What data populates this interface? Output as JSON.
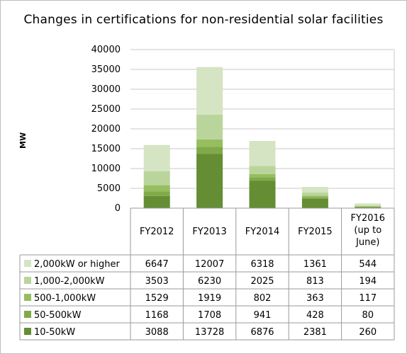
{
  "chart_data": {
    "type": "bar",
    "stacked": true,
    "title": "Changes in certifications for non-residential solar facilities",
    "ylabel": "MW",
    "xlabel": "",
    "ylim": [
      0,
      40000
    ],
    "yticks": [
      "0",
      "5000",
      "10000",
      "15000",
      "20000",
      "25000",
      "30000",
      "35000",
      "40000"
    ],
    "grid": true,
    "legend": "table-left",
    "categories": [
      {
        "label": "FY2012",
        "lines": [
          "FY2012"
        ]
      },
      {
        "label": "FY2013",
        "lines": [
          "FY2013"
        ]
      },
      {
        "label": "FY2014",
        "lines": [
          "FY2014"
        ]
      },
      {
        "label": "FY2015",
        "lines": [
          "FY2015"
        ]
      },
      {
        "label": "FY2016 (up to June)",
        "lines": [
          "FY2016",
          "(up to",
          "June)"
        ]
      }
    ],
    "series": [
      {
        "name": "2,000kW or higher",
        "color": "#d5e4c2",
        "values": [
          6647,
          12007,
          6318,
          1361,
          544
        ]
      },
      {
        "name": "1,000-2,000kW",
        "color": "#b9d59c",
        "values": [
          3503,
          6230,
          2025,
          813,
          194
        ]
      },
      {
        "name": "500-1,000kW",
        "color": "#96be5f",
        "values": [
          1529,
          1919,
          802,
          363,
          117
        ]
      },
      {
        "name": "50-500kW",
        "color": "#80aa48",
        "values": [
          1168,
          1708,
          941,
          428,
          80
        ]
      },
      {
        "name": "10-50kW",
        "color": "#648d34",
        "values": [
          3088,
          13728,
          6876,
          2381,
          260
        ]
      }
    ],
    "stack_order_bottom_to_top": [
      "10-50kW",
      "50-500kW",
      "500-1,000kW",
      "1,000-2,000kW",
      "2,000kW or higher"
    ]
  }
}
